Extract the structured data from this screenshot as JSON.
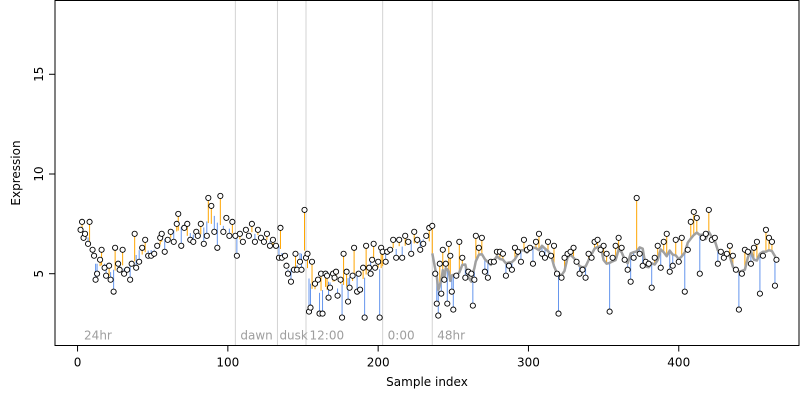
{
  "chart_data": {
    "type": "scatter",
    "title": "",
    "xlabel": "Sample index",
    "ylabel": "Expression",
    "xlim": [
      -15,
      480
    ],
    "ylim": [
      1.4,
      18.7
    ],
    "x_ticks": [
      0,
      100,
      200,
      300,
      400
    ],
    "y_ticks": [
      5,
      10,
      15
    ],
    "grid": false,
    "legend": "none",
    "colors": {
      "points": "#000000",
      "fit_line": "#a0a0a0",
      "residual_positive": "#ffa500",
      "residual_negative": "#6495ed",
      "vlines": "#d3d3d3",
      "annotations": "#9e9e9e"
    },
    "vlines": [
      105,
      133,
      152,
      203,
      236
    ],
    "annotations": [
      {
        "text": "24hr",
        "x": 3
      },
      {
        "text": "dawn",
        "x": 107
      },
      {
        "text": "dusk",
        "x": 133
      },
      {
        "text": "12:00",
        "x": 153
      },
      {
        "text": "0:00",
        "x": 205
      },
      {
        "text": "48hr",
        "x": 238
      }
    ],
    "fit_line_range": [
      236,
      465
    ],
    "series": [
      {
        "points": [
          [
            2,
            7.2
          ],
          [
            3,
            7.6
          ],
          [
            4,
            6.8
          ],
          [
            5,
            7.0
          ],
          [
            7,
            6.5
          ],
          [
            8,
            7.6
          ],
          [
            10,
            6.2
          ],
          [
            11,
            5.9
          ],
          [
            12,
            4.7
          ],
          [
            13,
            5.0
          ],
          [
            15,
            5.7
          ],
          [
            16,
            6.2
          ],
          [
            18,
            5.3
          ],
          [
            19,
            4.9
          ],
          [
            21,
            5.4
          ],
          [
            22,
            4.7
          ],
          [
            24,
            4.1
          ],
          [
            25,
            6.3
          ],
          [
            27,
            5.5
          ],
          [
            28,
            5.2
          ],
          [
            30,
            6.2
          ],
          [
            31,
            5.0
          ],
          [
            33,
            5.2
          ],
          [
            35,
            4.7
          ],
          [
            36,
            5.5
          ],
          [
            38,
            7.0
          ],
          [
            39,
            5.3
          ],
          [
            41,
            5.6
          ],
          [
            43,
            6.3
          ],
          [
            45,
            6.7
          ],
          [
            47,
            5.9
          ],
          [
            49,
            5.9
          ],
          [
            51,
            6.0
          ],
          [
            53,
            6.4
          ],
          [
            55,
            6.8
          ],
          [
            56,
            7.0
          ],
          [
            58,
            6.1
          ],
          [
            60,
            6.7
          ],
          [
            62,
            7.1
          ],
          [
            64,
            6.6
          ],
          [
            66,
            7.5
          ],
          [
            67,
            8.0
          ],
          [
            69,
            6.4
          ],
          [
            71,
            7.3
          ],
          [
            73,
            7.5
          ],
          [
            75,
            6.7
          ],
          [
            77,
            6.6
          ],
          [
            79,
            7.1
          ],
          [
            80,
            6.9
          ],
          [
            82,
            7.5
          ],
          [
            84,
            6.5
          ],
          [
            86,
            6.9
          ],
          [
            87,
            8.8
          ],
          [
            89,
            8.4
          ],
          [
            91,
            7.1
          ],
          [
            93,
            6.3
          ],
          [
            95,
            8.9
          ],
          [
            97,
            7.1
          ],
          [
            99,
            7.8
          ],
          [
            101,
            6.9
          ],
          [
            103,
            7.6
          ],
          [
            105,
            6.9
          ],
          [
            106,
            5.9
          ],
          [
            108,
            7.0
          ],
          [
            110,
            6.6
          ],
          [
            112,
            7.2
          ],
          [
            114,
            6.9
          ],
          [
            116,
            7.5
          ],
          [
            118,
            6.6
          ],
          [
            120,
            7.2
          ],
          [
            122,
            6.8
          ],
          [
            124,
            6.6
          ],
          [
            126,
            7.0
          ],
          [
            128,
            6.4
          ],
          [
            130,
            6.7
          ],
          [
            132,
            6.4
          ],
          [
            134,
            5.8
          ],
          [
            135,
            7.3
          ],
          [
            136,
            5.8
          ],
          [
            138,
            5.9
          ],
          [
            139,
            5.4
          ],
          [
            140,
            5.0
          ],
          [
            142,
            4.6
          ],
          [
            144,
            5.2
          ],
          [
            145,
            6.0
          ],
          [
            146,
            5.2
          ],
          [
            148,
            5.6
          ],
          [
            149,
            5.2
          ],
          [
            151,
            8.2
          ],
          [
            152,
            5.8
          ],
          [
            153,
            6.0
          ],
          [
            154,
            3.1
          ],
          [
            155,
            3.3
          ],
          [
            156,
            5.6
          ],
          [
            158,
            4.5
          ],
          [
            160,
            4.7
          ],
          [
            161,
            3.0
          ],
          [
            162,
            5.0
          ],
          [
            163,
            3.0
          ],
          [
            165,
            5.0
          ],
          [
            166,
            4.9
          ],
          [
            167,
            3.8
          ],
          [
            168,
            4.3
          ],
          [
            170,
            5.0
          ],
          [
            171,
            4.8
          ],
          [
            172,
            5.1
          ],
          [
            173,
            3.9
          ],
          [
            175,
            4.7
          ],
          [
            176,
            2.8
          ],
          [
            177,
            6.0
          ],
          [
            179,
            5.1
          ],
          [
            180,
            3.6
          ],
          [
            181,
            4.3
          ],
          [
            183,
            4.9
          ],
          [
            184,
            6.3
          ],
          [
            186,
            4.1
          ],
          [
            187,
            5.0
          ],
          [
            188,
            4.2
          ],
          [
            190,
            5.3
          ],
          [
            191,
            2.8
          ],
          [
            192,
            6.4
          ],
          [
            194,
            5.3
          ],
          [
            195,
            5.0
          ],
          [
            196,
            5.7
          ],
          [
            197,
            6.5
          ],
          [
            198,
            5.3
          ],
          [
            200,
            5.6
          ],
          [
            201,
            2.8
          ],
          [
            202,
            6.3
          ],
          [
            203,
            6.1
          ],
          [
            205,
            5.6
          ],
          [
            206,
            6.1
          ],
          [
            208,
            6.2
          ],
          [
            210,
            6.7
          ],
          [
            212,
            5.8
          ],
          [
            214,
            6.7
          ],
          [
            216,
            5.8
          ],
          [
            218,
            6.9
          ],
          [
            220,
            6.6
          ],
          [
            222,
            6.0
          ],
          [
            224,
            7.1
          ],
          [
            226,
            6.7
          ],
          [
            228,
            6.2
          ],
          [
            230,
            6.5
          ],
          [
            232,
            6.9
          ],
          [
            234,
            7.3
          ],
          [
            236,
            7.4
          ],
          [
            238,
            5.0
          ],
          [
            239,
            3.5
          ],
          [
            240,
            2.9
          ],
          [
            241,
            5.5
          ],
          [
            242,
            4.0
          ],
          [
            243,
            6.2
          ],
          [
            244,
            4.7
          ],
          [
            245,
            5.5
          ],
          [
            246,
            3.5
          ],
          [
            247,
            6.5
          ],
          [
            248,
            5.9
          ],
          [
            249,
            4.1
          ],
          [
            250,
            3.2
          ],
          [
            252,
            4.9
          ],
          [
            254,
            6.6
          ],
          [
            256,
            5.8
          ],
          [
            258,
            4.8
          ],
          [
            260,
            5.1
          ],
          [
            262,
            5.0
          ],
          [
            263,
            3.4
          ],
          [
            264,
            4.7
          ],
          [
            265,
            6.9
          ],
          [
            267,
            6.3
          ],
          [
            269,
            6.8
          ],
          [
            271,
            5.1
          ],
          [
            273,
            4.8
          ],
          [
            275,
            5.6
          ],
          [
            277,
            5.6
          ],
          [
            279,
            6.1
          ],
          [
            281,
            6.1
          ],
          [
            283,
            6.0
          ],
          [
            285,
            4.9
          ],
          [
            287,
            5.4
          ],
          [
            289,
            5.2
          ],
          [
            291,
            6.3
          ],
          [
            293,
            6.1
          ],
          [
            295,
            5.6
          ],
          [
            297,
            6.7
          ],
          [
            299,
            6.2
          ],
          [
            301,
            6.3
          ],
          [
            303,
            5.5
          ],
          [
            305,
            6.6
          ],
          [
            307,
            7.0
          ],
          [
            309,
            6.0
          ],
          [
            311,
            5.8
          ],
          [
            313,
            6.6
          ],
          [
            315,
            5.9
          ],
          [
            317,
            6.4
          ],
          [
            319,
            5.0
          ],
          [
            320,
            3.0
          ],
          [
            322,
            4.8
          ],
          [
            324,
            5.8
          ],
          [
            326,
            6.0
          ],
          [
            328,
            6.1
          ],
          [
            330,
            6.3
          ],
          [
            332,
            5.6
          ],
          [
            334,
            5.0
          ],
          [
            336,
            5.2
          ],
          [
            338,
            4.8
          ],
          [
            340,
            6.0
          ],
          [
            342,
            5.8
          ],
          [
            344,
            6.6
          ],
          [
            346,
            6.7
          ],
          [
            348,
            6.2
          ],
          [
            350,
            6.4
          ],
          [
            352,
            6.0
          ],
          [
            354,
            3.1
          ],
          [
            356,
            5.8
          ],
          [
            358,
            6.4
          ],
          [
            360,
            6.8
          ],
          [
            362,
            6.3
          ],
          [
            364,
            5.7
          ],
          [
            366,
            5.2
          ],
          [
            368,
            4.6
          ],
          [
            370,
            5.8
          ],
          [
            372,
            8.8
          ],
          [
            374,
            6.0
          ],
          [
            376,
            5.4
          ],
          [
            378,
            5.6
          ],
          [
            380,
            5.5
          ],
          [
            382,
            4.3
          ],
          [
            384,
            5.8
          ],
          [
            386,
            6.4
          ],
          [
            388,
            5.3
          ],
          [
            390,
            6.6
          ],
          [
            392,
            7.0
          ],
          [
            394,
            5.1
          ],
          [
            396,
            5.4
          ],
          [
            398,
            6.7
          ],
          [
            400,
            5.6
          ],
          [
            402,
            6.8
          ],
          [
            404,
            4.1
          ],
          [
            406,
            6.2
          ],
          [
            408,
            7.6
          ],
          [
            410,
            8.1
          ],
          [
            412,
            7.8
          ],
          [
            414,
            5.0
          ],
          [
            416,
            6.8
          ],
          [
            418,
            7.0
          ],
          [
            420,
            8.2
          ],
          [
            422,
            6.7
          ],
          [
            424,
            6.8
          ],
          [
            426,
            5.5
          ],
          [
            428,
            6.1
          ],
          [
            430,
            5.8
          ],
          [
            432,
            6.0
          ],
          [
            434,
            6.4
          ],
          [
            436,
            5.9
          ],
          [
            438,
            5.2
          ],
          [
            440,
            3.2
          ],
          [
            442,
            5.0
          ],
          [
            444,
            6.2
          ],
          [
            446,
            6.1
          ],
          [
            448,
            5.5
          ],
          [
            450,
            6.3
          ],
          [
            452,
            6.6
          ],
          [
            454,
            4.0
          ],
          [
            456,
            5.9
          ],
          [
            458,
            7.2
          ],
          [
            460,
            6.8
          ],
          [
            462,
            6.6
          ],
          [
            464,
            4.4
          ],
          [
            465,
            5.7
          ]
        ]
      }
    ]
  }
}
